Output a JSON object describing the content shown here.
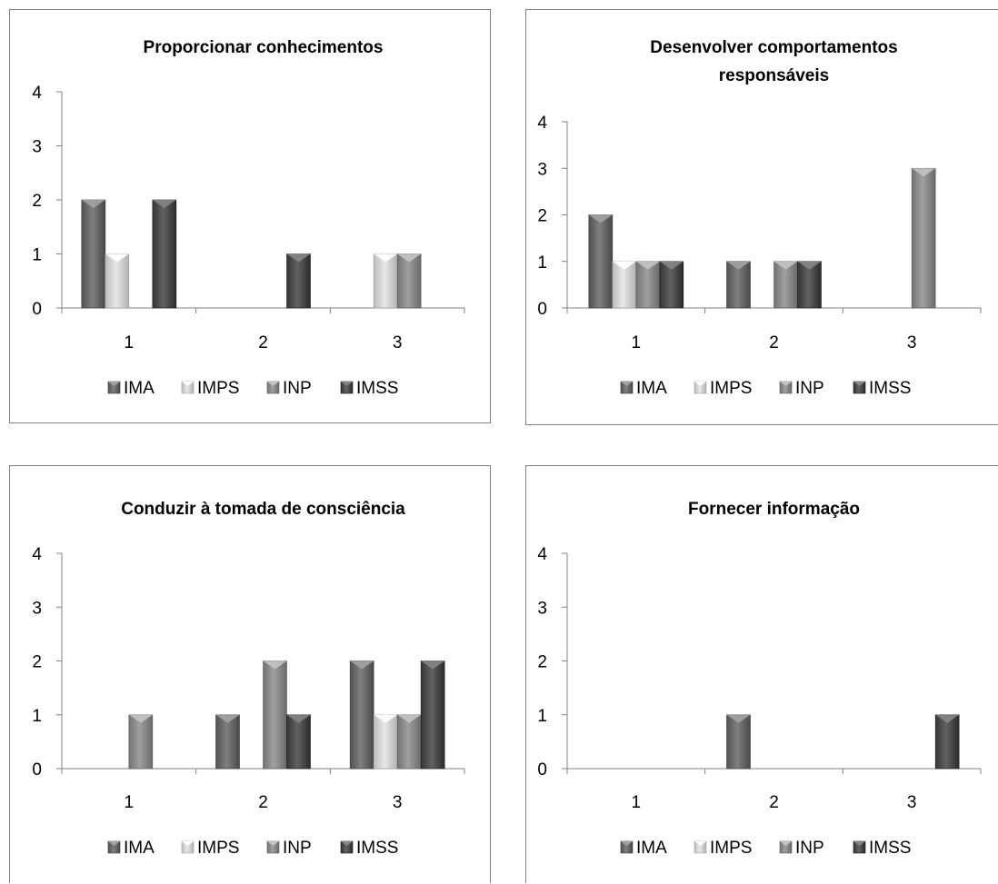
{
  "colors": {
    "IMA": "#6b6b6b",
    "IMPS": "#d4d4d4",
    "INP": "#8c8c8c",
    "IMSS": "#4e4e4e"
  },
  "chart_data": [
    {
      "type": "bar",
      "title": [
        "Proporcionar conhecimentos"
      ],
      "categories": [
        "1",
        "2",
        "3"
      ],
      "series": [
        {
          "name": "IMA",
          "values": [
            2,
            0,
            0
          ]
        },
        {
          "name": "IMPS",
          "values": [
            1,
            0,
            1
          ]
        },
        {
          "name": "INP",
          "values": [
            0,
            0,
            1
          ]
        },
        {
          "name": "IMSS",
          "values": [
            2,
            1,
            0
          ]
        }
      ],
      "ylim": [
        0,
        4
      ],
      "yticks": [
        "0",
        "1",
        "2",
        "3",
        "4"
      ],
      "legend": "bottom",
      "grid": false
    },
    {
      "type": "bar",
      "title": [
        "Desenvolver comportamentos",
        "responsáveis"
      ],
      "categories": [
        "1",
        "2",
        "3"
      ],
      "series": [
        {
          "name": "IMA",
          "values": [
            2,
            1,
            0
          ]
        },
        {
          "name": "IMPS",
          "values": [
            1,
            0,
            0
          ]
        },
        {
          "name": "INP",
          "values": [
            1,
            1,
            3
          ]
        },
        {
          "name": "IMSS",
          "values": [
            1,
            1,
            0
          ]
        }
      ],
      "ylim": [
        0,
        4
      ],
      "yticks": [
        "0",
        "1",
        "2",
        "3",
        "4"
      ],
      "legend": "bottom",
      "grid": false
    },
    {
      "type": "bar",
      "title": [
        "Conduzir à tomada de consciência"
      ],
      "categories": [
        "1",
        "2",
        "3"
      ],
      "series": [
        {
          "name": "IMA",
          "values": [
            0,
            1,
            2
          ]
        },
        {
          "name": "IMPS",
          "values": [
            0,
            0,
            1
          ]
        },
        {
          "name": "INP",
          "values": [
            1,
            2,
            1
          ]
        },
        {
          "name": "IMSS",
          "values": [
            0,
            1,
            2
          ]
        }
      ],
      "ylim": [
        0,
        4
      ],
      "yticks": [
        "0",
        "1",
        "2",
        "3",
        "4"
      ],
      "legend": "bottom",
      "grid": false
    },
    {
      "type": "bar",
      "title": [
        "Fornecer informação"
      ],
      "categories": [
        "1",
        "2",
        "3"
      ],
      "series": [
        {
          "name": "IMA",
          "values": [
            0,
            1,
            0
          ]
        },
        {
          "name": "IMPS",
          "values": [
            0,
            0,
            0
          ]
        },
        {
          "name": "INP",
          "values": [
            0,
            0,
            0
          ]
        },
        {
          "name": "IMSS",
          "values": [
            0,
            0,
            1
          ]
        }
      ],
      "ylim": [
        0,
        4
      ],
      "yticks": [
        "0",
        "1",
        "2",
        "3",
        "4"
      ],
      "legend": "bottom",
      "grid": false
    }
  ]
}
